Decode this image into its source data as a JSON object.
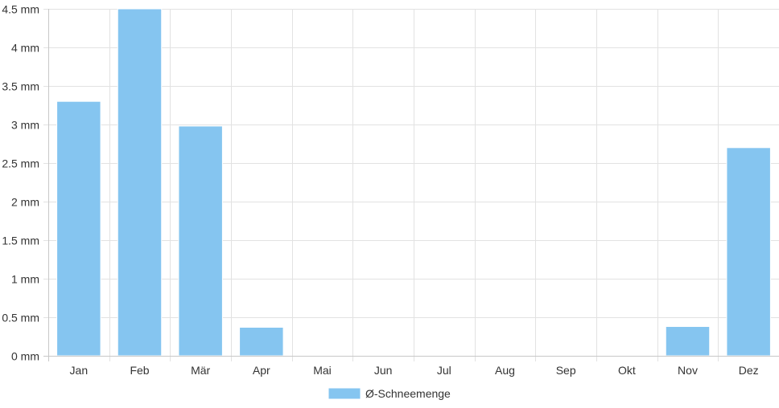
{
  "chart_data": {
    "type": "bar",
    "title": "",
    "xlabel": "",
    "ylabel": "",
    "categories": [
      "Jan",
      "Feb",
      "Mär",
      "Apr",
      "Mai",
      "Jun",
      "Jul",
      "Aug",
      "Sep",
      "Okt",
      "Nov",
      "Dez"
    ],
    "series": [
      {
        "name": "Ø-Schneemenge",
        "values": [
          3.3,
          4.5,
          2.98,
          0.37,
          0,
          0,
          0,
          0,
          0,
          0.01,
          0.38,
          2.7
        ]
      }
    ],
    "ylim": [
      0,
      4.5
    ],
    "y_ticks": [
      0,
      0.5,
      1,
      1.5,
      2,
      2.5,
      3,
      3.5,
      4,
      4.5
    ],
    "y_tick_labels": [
      "0 mm",
      "0.5 mm",
      "1 mm",
      "1.5 mm",
      "2 mm",
      "2.5 mm",
      "3 mm",
      "3.5 mm",
      "4 mm",
      "4.5 mm"
    ],
    "grid": true,
    "legend": {
      "position": "bottom",
      "entries": [
        "Ø-Schneemenge"
      ]
    },
    "colors": {
      "bar": "#85c5f0",
      "bar_border": "#ffffff",
      "grid": "#e2e2e2",
      "axis": "#c8c8c8",
      "text": "#333333"
    }
  }
}
